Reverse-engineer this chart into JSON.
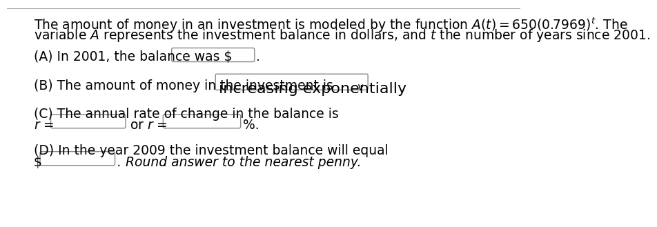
{
  "bg_color": "#ffffff",
  "text_color": "#000000",
  "box_color": "#ffffff",
  "box_edge_color": "#888888",
  "line1": "The amount of money in an investment is modeled by the function $A(t) = 650(0.7969)^t$. The",
  "line2": "variable $A$ represents the investment balance in dollars, and $t$ the number of years since 2001.",
  "partA_label": "(A) In 2001, the balance was $",
  "partA_dot": ".",
  "partB_label": "(B) The amount of money in the investment is",
  "partB_box_text": "increasing exponentially",
  "partC_label": "(C) The annual rate of change in the balance is",
  "partC_r_label": "$r$ =",
  "partC_or": "or $r$ =",
  "partC_pct": "%.",
  "partD_label": "(D) In the year 2009 the investment balance will equal",
  "partD_dollar": "$",
  "partD_note": "Round answer to the nearest penny.",
  "font_size_main": 13.5,
  "font_size_dropdown": 16,
  "top_line_color": "#aaaaaa"
}
